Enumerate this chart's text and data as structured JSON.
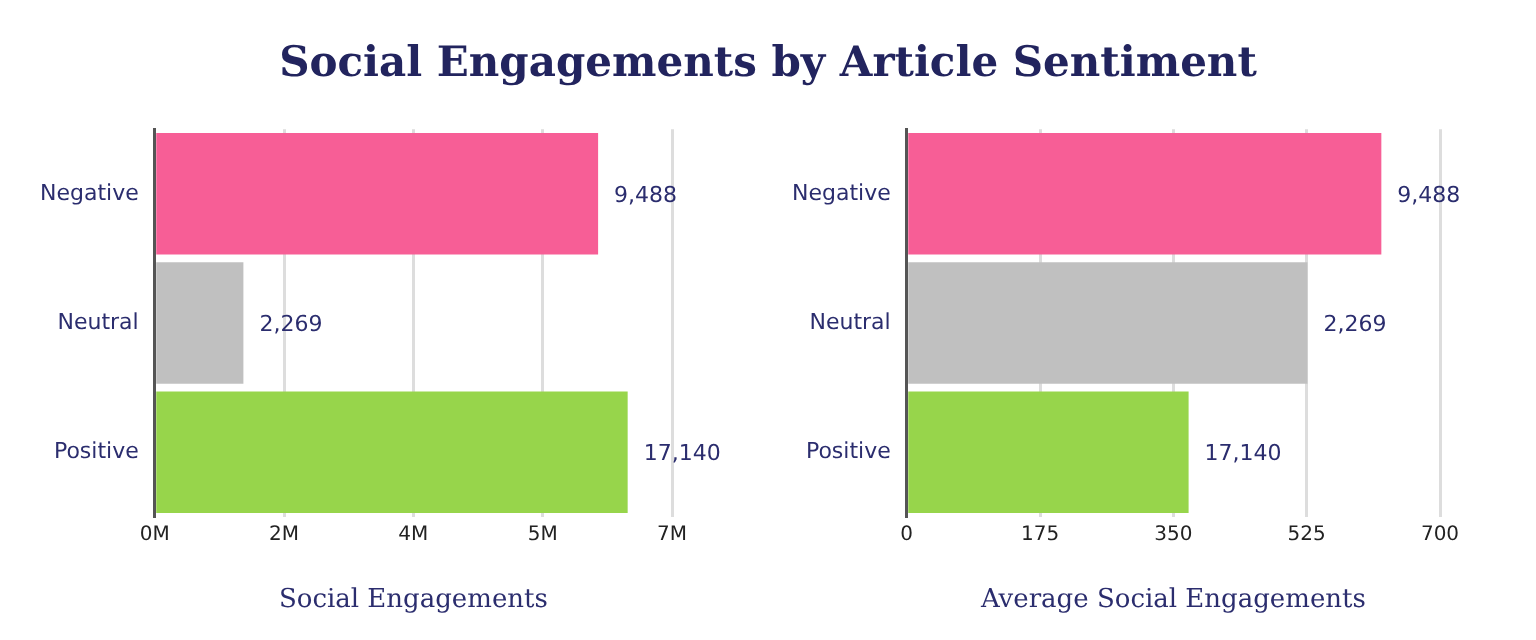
{
  "chart_data": [
    {
      "type": "bar",
      "title": "Social Engagements by Article Sentiment",
      "orientation": "horizontal",
      "categories": [
        "Negative",
        "Neutral",
        "Positive"
      ],
      "values": [
        6.0,
        1.2,
        6.4
      ],
      "colors": [
        "#f75e96",
        "#c0c0c0",
        "#97d54b"
      ],
      "annotations": [
        {
          "text": "9,488",
          "x": 6.0,
          "y": "Negative"
        },
        {
          "text": "2,269",
          "x": 1.2,
          "y": "Neutral"
        },
        {
          "text": "17,140",
          "x": 6.4,
          "y": "Positive"
        }
      ],
      "xlabel": "Social Engagements",
      "xlim": [
        0,
        7
      ],
      "xticks": [
        {
          "value": 0,
          "label": "0M"
        },
        {
          "value": 1.75,
          "label": "2M"
        },
        {
          "value": 3.5,
          "label": "4M"
        },
        {
          "value": 5.25,
          "label": "5M"
        },
        {
          "value": 7,
          "label": "7M"
        }
      ],
      "grid": "x",
      "legend": false
    },
    {
      "type": "bar",
      "orientation": "horizontal",
      "categories": [
        "Negative",
        "Neutral",
        "Positive"
      ],
      "values": [
        623,
        526,
        370
      ],
      "colors": [
        "#f75e96",
        "#c0c0c0",
        "#97d54b"
      ],
      "annotations": [
        {
          "text": "9,488",
          "x": 623,
          "y": "Negative"
        },
        {
          "text": "2,269",
          "x": 526,
          "y": "Neutral"
        },
        {
          "text": "17,140",
          "x": 370,
          "y": "Positive"
        }
      ],
      "xlabel": "Average Social Engagements",
      "xlim": [
        0,
        700
      ],
      "xticks": [
        0,
        175,
        350,
        525,
        700
      ],
      "grid": "x",
      "legend": false
    }
  ]
}
